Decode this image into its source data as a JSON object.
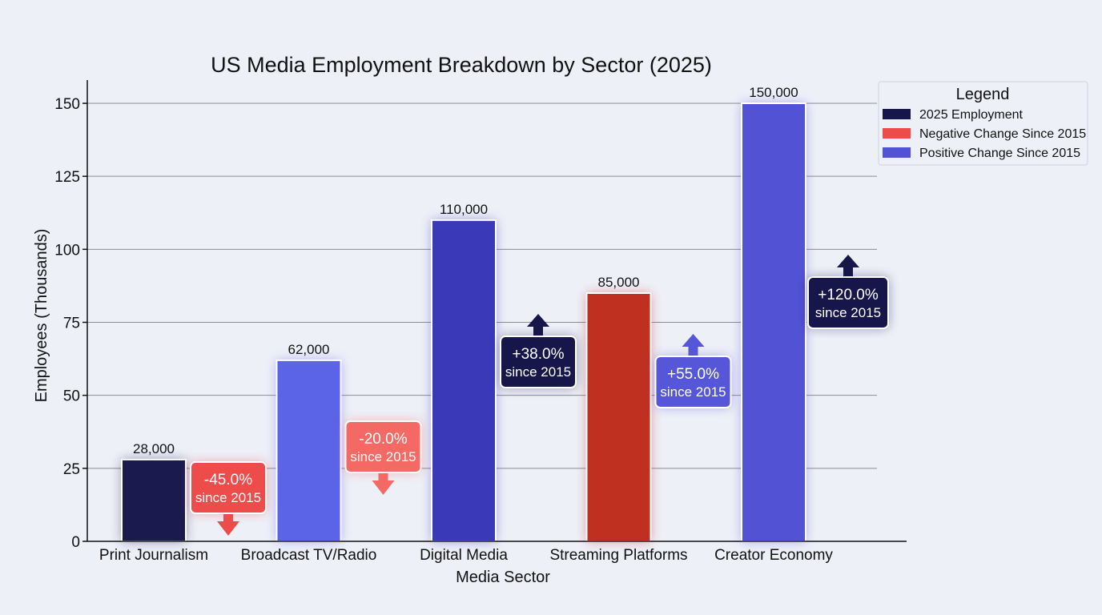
{
  "chart_data": {
    "type": "bar",
    "title": "US Media Employment Breakdown by Sector (2025)",
    "xlabel": "Media Sector",
    "ylabel": "Employees (Thousands)",
    "ylim": [
      0,
      150
    ],
    "yticks": [
      0,
      25,
      50,
      75,
      100,
      125,
      150
    ],
    "grid": true,
    "categories": [
      "Print Journalism",
      "Broadcast TV/Radio",
      "Digital Media",
      "Streaming Platforms",
      "Creator Economy"
    ],
    "values": [
      28,
      62,
      110,
      85,
      150
    ],
    "value_labels": [
      "28,000",
      "62,000",
      "110,000",
      "85,000",
      "150,000"
    ],
    "bar_colors": [
      "#1a1a4e",
      "#5b63e6",
      "#3a3ab8",
      "#bf3020",
      "#5252d4"
    ],
    "annotations": [
      {
        "change": "-45.0%",
        "since": "since 2015",
        "direction": "down",
        "color": "#ee4c4a"
      },
      {
        "change": "-20.0%",
        "since": "since 2015",
        "direction": "down",
        "color": "#f26a63"
      },
      {
        "change": "+38.0%",
        "since": "since 2015",
        "direction": "up",
        "color": "#16164a"
      },
      {
        "change": "+55.0%",
        "since": "since 2015",
        "direction": "up",
        "color": "#5557d8"
      },
      {
        "change": "+120.0%",
        "since": "since 2015",
        "direction": "up",
        "color": "#16164a"
      }
    ],
    "legend": {
      "title": "Legend",
      "position": "top-right",
      "entries": [
        {
          "label": "2025 Employment",
          "color": "#16164a"
        },
        {
          "label": "Negative Change Since 2015",
          "color": "#ee4c4a"
        },
        {
          "label": "Positive Change Since 2015",
          "color": "#5252d4"
        }
      ]
    }
  }
}
